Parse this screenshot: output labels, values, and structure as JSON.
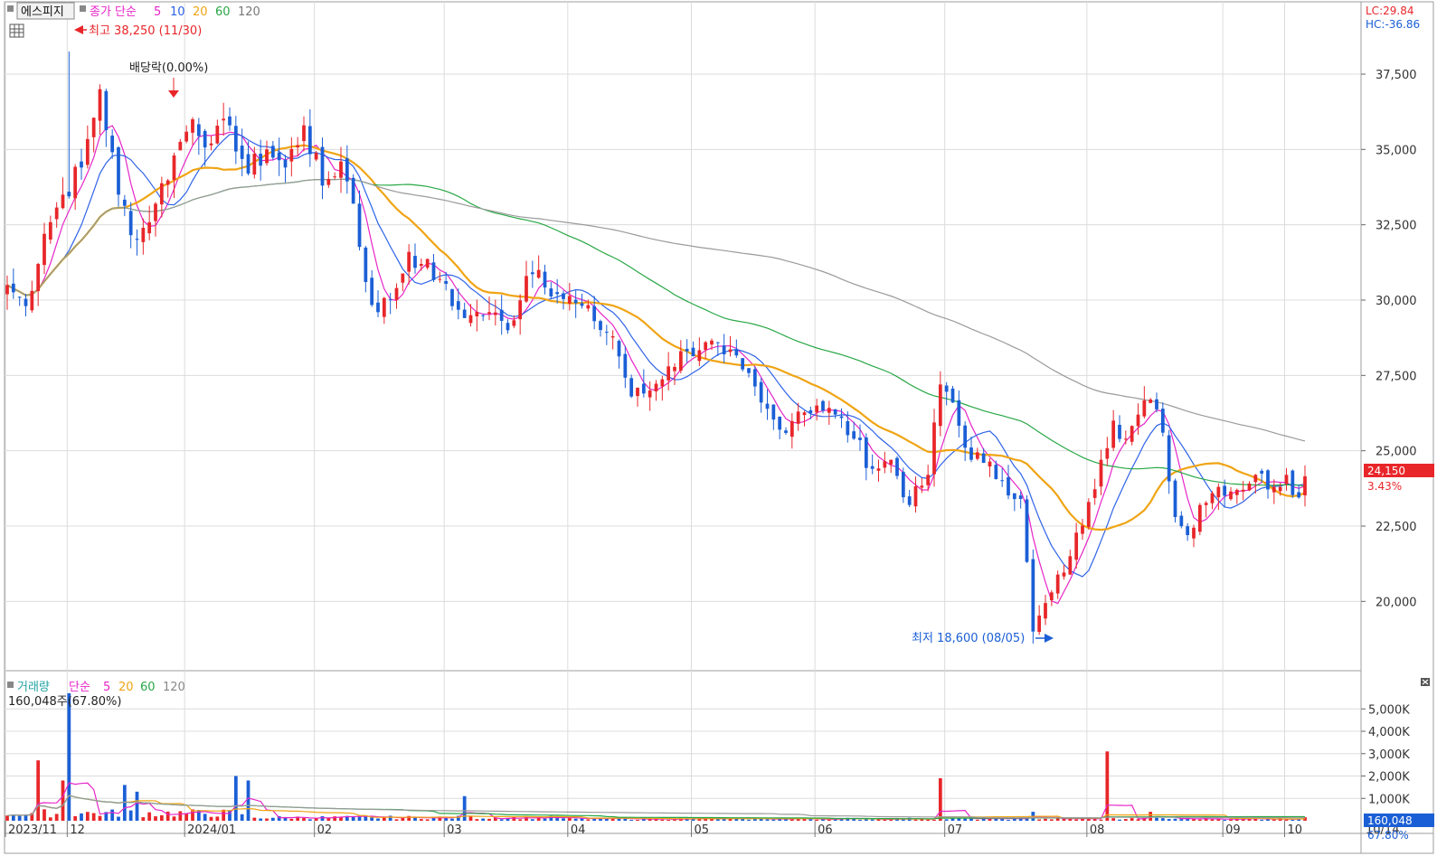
{
  "price_panel": {
    "tab_label": "에스피지",
    "legend": {
      "prefix": "종가 단순",
      "periods": [
        "5",
        "10",
        "20",
        "60",
        "120"
      ]
    },
    "high_annotation": "최고 38,250 (11/30)",
    "low_annotation": "최저 18,600 (08/05)",
    "dividend_annotation": "배당락(0.00%)",
    "lc_label": "LC:29.84",
    "hc_label": "HC:-36.86",
    "current_price_badge": "24,150",
    "current_change": "3.43%"
  },
  "volume_panel": {
    "legend": {
      "prefix": "거래량",
      "mode": "단순",
      "periods": [
        "5",
        "20",
        "60",
        "120"
      ]
    },
    "current_volume_text": "160,048주(67.80%)",
    "badge_value": "160,048",
    "badge_pct": "67.80%"
  },
  "colors": {
    "up": "#e8262a",
    "down": "#1b5fd6",
    "ma5": "#e625c8",
    "ma10": "#2e63e8",
    "ma20": "#f0a414",
    "ma60": "#28a745",
    "ma120": "#9a9a9a",
    "grid": "#dcdcdc",
    "axis_bg": "#ffffff"
  },
  "chart_data": [
    {
      "type": "candlestick",
      "title": "",
      "x_axis": {
        "tick_labels": [
          "2023/11",
          "12",
          "2024/01",
          "02",
          "03",
          "04",
          "05",
          "06",
          "07",
          "08",
          "09",
          "10",
          "10/14"
        ]
      },
      "y_axis": {
        "ticks": [
          20000,
          22500,
          25000,
          27500,
          30000,
          32500,
          35000,
          37500
        ],
        "tick_labels": [
          "20,000",
          "22,500",
          "25,000",
          "27,500",
          "30,000",
          "32,500",
          "35,000",
          "37,500"
        ],
        "range": [
          17700,
          39900
        ]
      },
      "grid": true,
      "ohlc_close_anchors": [
        {
          "i": 0,
          "c": 30500
        },
        {
          "i": 3,
          "c": 29800
        },
        {
          "i": 6,
          "c": 32200
        },
        {
          "i": 9,
          "c": 33500
        },
        {
          "i": 12,
          "c": 34400
        },
        {
          "i": 15,
          "c": 37000
        },
        {
          "i": 18,
          "c": 33500
        },
        {
          "i": 21,
          "c": 32000
        },
        {
          "i": 24,
          "c": 33200
        },
        {
          "i": 27,
          "c": 34800
        },
        {
          "i": 30,
          "c": 36000
        },
        {
          "i": 33,
          "c": 35200
        },
        {
          "i": 36,
          "c": 35800
        },
        {
          "i": 39,
          "c": 34200
        },
        {
          "i": 42,
          "c": 35000
        },
        {
          "i": 45,
          "c": 34400
        },
        {
          "i": 48,
          "c": 35800
        },
        {
          "i": 51,
          "c": 33800
        },
        {
          "i": 54,
          "c": 34600
        },
        {
          "i": 56,
          "c": 33200
        },
        {
          "i": 58,
          "c": 30600
        },
        {
          "i": 60,
          "c": 29600
        },
        {
          "i": 63,
          "c": 30400
        },
        {
          "i": 65,
          "c": 31600
        },
        {
          "i": 67,
          "c": 31200
        },
        {
          "i": 70,
          "c": 30700
        },
        {
          "i": 72,
          "c": 29800
        },
        {
          "i": 75,
          "c": 29500
        },
        {
          "i": 78,
          "c": 29600
        },
        {
          "i": 81,
          "c": 29000
        },
        {
          "i": 84,
          "c": 30800
        },
        {
          "i": 86,
          "c": 31000
        },
        {
          "i": 89,
          "c": 30200
        },
        {
          "i": 92,
          "c": 29900
        },
        {
          "i": 95,
          "c": 29300
        },
        {
          "i": 98,
          "c": 28800
        },
        {
          "i": 101,
          "c": 26800
        },
        {
          "i": 104,
          "c": 27000
        },
        {
          "i": 107,
          "c": 27800
        },
        {
          "i": 110,
          "c": 28300
        },
        {
          "i": 113,
          "c": 28600
        },
        {
          "i": 116,
          "c": 28200
        },
        {
          "i": 119,
          "c": 27700
        },
        {
          "i": 122,
          "c": 26600
        },
        {
          "i": 125,
          "c": 25700
        },
        {
          "i": 128,
          "c": 26300
        },
        {
          "i": 131,
          "c": 26500
        },
        {
          "i": 134,
          "c": 26200
        },
        {
          "i": 137,
          "c": 25400
        },
        {
          "i": 140,
          "c": 24400
        },
        {
          "i": 143,
          "c": 24700
        },
        {
          "i": 146,
          "c": 23200
        },
        {
          "i": 149,
          "c": 24200
        },
        {
          "i": 151,
          "c": 27200
        },
        {
          "i": 153,
          "c": 26600
        },
        {
          "i": 155,
          "c": 25100
        },
        {
          "i": 158,
          "c": 24600
        },
        {
          "i": 161,
          "c": 24000
        },
        {
          "i": 164,
          "c": 23400
        },
        {
          "i": 166,
          "c": 19000
        },
        {
          "i": 169,
          "c": 20300
        },
        {
          "i": 172,
          "c": 21500
        },
        {
          "i": 175,
          "c": 23300
        },
        {
          "i": 177,
          "c": 24700
        },
        {
          "i": 179,
          "c": 26000
        },
        {
          "i": 181,
          "c": 25400
        },
        {
          "i": 183,
          "c": 26200
        },
        {
          "i": 185,
          "c": 26700
        },
        {
          "i": 187,
          "c": 25600
        },
        {
          "i": 189,
          "c": 22800
        },
        {
          "i": 191,
          "c": 22200
        },
        {
          "i": 193,
          "c": 23200
        },
        {
          "i": 196,
          "c": 23800
        },
        {
          "i": 199,
          "c": 23700
        },
        {
          "i": 202,
          "c": 24200
        },
        {
          "i": 205,
          "c": 23800
        },
        {
          "i": 207,
          "c": 24200
        },
        {
          "i": 209,
          "c": 23450
        },
        {
          "i": 210,
          "c": 24150
        }
      ],
      "bar_count": 211,
      "high": {
        "value": 38250,
        "date": "11/30"
      },
      "low": {
        "value": 18600,
        "date": "08/05"
      },
      "last_close": 24150,
      "series": [
        {
          "name": "5",
          "kind": "sma",
          "source": "close"
        },
        {
          "name": "10",
          "kind": "sma",
          "source": "close"
        },
        {
          "name": "20",
          "kind": "sma",
          "source": "close"
        },
        {
          "name": "60",
          "kind": "sma",
          "source": "close"
        },
        {
          "name": "120",
          "kind": "sma",
          "source": "close"
        }
      ]
    },
    {
      "type": "bar",
      "title": "",
      "y_axis": {
        "ticks": [
          1000,
          2000,
          3000,
          4000,
          5000
        ],
        "tick_labels": [
          "1,000K",
          "2,000K",
          "3,000K",
          "4,000K",
          "5,000K"
        ],
        "range": [
          0,
          5900
        ]
      },
      "volume_spikes_k": [
        {
          "i": 5,
          "v": 2700
        },
        {
          "i": 10,
          "v": 5700
        },
        {
          "i": 9,
          "v": 1800
        },
        {
          "i": 19,
          "v": 1600
        },
        {
          "i": 21,
          "v": 1300
        },
        {
          "i": 37,
          "v": 2000
        },
        {
          "i": 39,
          "v": 1800
        },
        {
          "i": 74,
          "v": 1100
        },
        {
          "i": 151,
          "v": 1900
        },
        {
          "i": 166,
          "v": 400
        },
        {
          "i": 178,
          "v": 3100
        },
        {
          "i": 185,
          "v": 400
        }
      ],
      "last_volume": 160048,
      "series": [
        {
          "name": "5",
          "kind": "sma"
        },
        {
          "name": "20",
          "kind": "sma"
        },
        {
          "name": "60",
          "kind": "sma"
        },
        {
          "name": "120",
          "kind": "sma"
        }
      ]
    }
  ]
}
